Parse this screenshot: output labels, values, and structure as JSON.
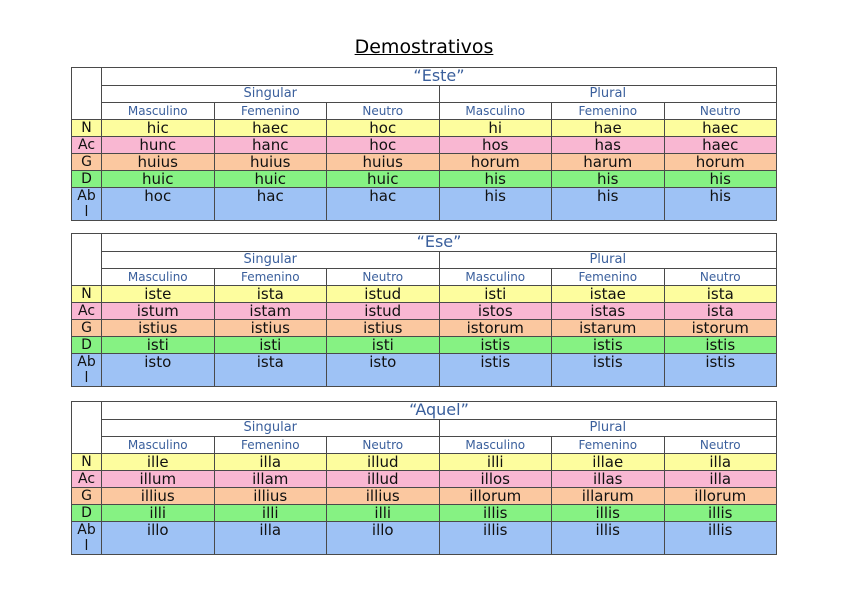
{
  "title": "Demostrativos",
  "header": {
    "singular": "Singular",
    "plural": "Plural",
    "genders": [
      "Masculino",
      "Femenino",
      "Neutro",
      "Masculino",
      "Femenino",
      "Neutro"
    ]
  },
  "cases": [
    "N",
    "Ac",
    "G",
    "D",
    "Ab\nl"
  ],
  "tables": [
    {
      "word": "“Este”",
      "rows": [
        [
          "hic",
          "haec",
          "hoc",
          "hi",
          "hae",
          "haec"
        ],
        [
          "hunc",
          "hanc",
          "hoc",
          "hos",
          "has",
          "haec"
        ],
        [
          "huius",
          "huius",
          "huius",
          "horum",
          "harum",
          "horum"
        ],
        [
          "huic",
          "huic",
          "huic",
          "his",
          "his",
          "his"
        ],
        [
          "hoc",
          "hac",
          "hac",
          "his",
          "his",
          "his"
        ]
      ]
    },
    {
      "word": "“Ese”",
      "rows": [
        [
          "iste",
          "ista",
          "istud",
          "isti",
          "istae",
          "ista"
        ],
        [
          "istum",
          "istam",
          "istud",
          "istos",
          "istas",
          "ista"
        ],
        [
          "istius",
          "istius",
          "istius",
          "istorum",
          "istarum",
          "istorum"
        ],
        [
          "isti",
          "isti",
          "isti",
          "istis",
          "istis",
          "istis"
        ],
        [
          "isto",
          "ista",
          "isto",
          "istis",
          "istis",
          "istis"
        ]
      ]
    },
    {
      "word": "“Aquel”",
      "rows": [
        [
          "ille",
          "illa",
          "illud",
          "illi",
          "illae",
          "illa"
        ],
        [
          "illum",
          "illam",
          "illud",
          "illos",
          "illas",
          "illa"
        ],
        [
          "illius",
          "illius",
          "illius",
          "illorum",
          "illarum",
          "illorum"
        ],
        [
          "illi",
          "illi",
          "illi",
          "illis",
          "illis",
          "illis"
        ],
        [
          "illo",
          "illa",
          "illo",
          "illis",
          "illis",
          "illis"
        ]
      ]
    }
  ],
  "colors": {
    "N": "#fdfd9e",
    "Ac": "#f9b7d2",
    "G": "#fbc8a0",
    "D": "#86f283",
    "Abl": "#9ec2f5",
    "header_text": "#3a5f9c"
  }
}
